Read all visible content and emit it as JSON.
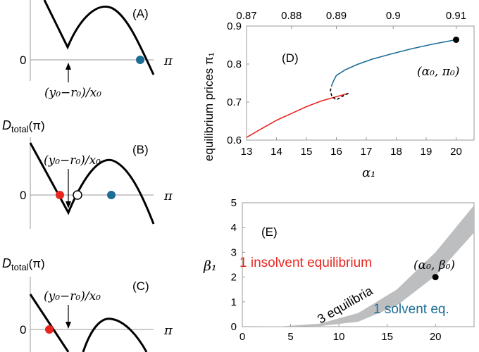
{
  "colors": {
    "red": "#e8261f",
    "blue": "#1d6d96",
    "black": "#000000",
    "gray": "#bdbec0",
    "axis": "#999999"
  },
  "panels": {
    "A": {
      "label": "(A)",
      "zero": "0",
      "pi": "π",
      "annotation": "(y₀−r₀)/x₀"
    },
    "B": {
      "ylabel": "D",
      "ylabel_sub": "total",
      "ylabel_arg": "(π)",
      "label": "(B)",
      "zero": "0",
      "pi": "π",
      "annotation": "(y₀−r₀)/x₀"
    },
    "C": {
      "ylabel": "D",
      "ylabel_sub": "total",
      "ylabel_arg": "(π)",
      "label": "(C)",
      "zero": "0",
      "pi": "π",
      "annotation": "(y₀−r₀)/x₀"
    }
  },
  "chart_data": [
    {
      "panel": "D",
      "type": "line",
      "label": "(D)",
      "xlabel": "α₁",
      "ylabel": "equilibrium prices π₁",
      "xlim": [
        13,
        20.6
      ],
      "ylim": [
        0.6,
        0.9
      ],
      "xticks": [
        "13",
        "14",
        "15",
        "16",
        "17",
        "18",
        "19",
        "20"
      ],
      "yticks": [
        "0.6",
        "0.7",
        "0.8",
        "0.9"
      ],
      "top_axis_ticks": [
        {
          "label": "0.87",
          "at": 13.0
        },
        {
          "label": "0.88",
          "at": 14.5
        },
        {
          "label": "0.89",
          "at": 16.0
        },
        {
          "label": "0.9",
          "at": 17.9
        },
        {
          "label": "0.91",
          "at": 20.0
        }
      ],
      "series": [
        {
          "branch": "insolvent",
          "color": "red",
          "x": [
            13.0,
            13.5,
            14.0,
            14.5,
            15.0,
            15.5,
            16.0,
            16.4
          ],
          "y": [
            0.607,
            0.63,
            0.652,
            0.67,
            0.688,
            0.703,
            0.714,
            0.723
          ]
        },
        {
          "branch": "unstable",
          "color": "black",
          "style": "dashed",
          "x": [
            16.4,
            16.2,
            16.0,
            15.85,
            15.8,
            15.84
          ],
          "y": [
            0.723,
            0.715,
            0.706,
            0.715,
            0.73,
            0.743
          ]
        },
        {
          "branch": "solvent",
          "color": "blue",
          "x": [
            15.84,
            15.9,
            16.0,
            16.3,
            16.7,
            17.2,
            17.8,
            18.5,
            19.2,
            20.0
          ],
          "y": [
            0.743,
            0.755,
            0.77,
            0.785,
            0.799,
            0.813,
            0.826,
            0.84,
            0.852,
            0.864
          ]
        }
      ],
      "point": {
        "label": "(α₀, π₀)",
        "x": 20.0,
        "y": 0.864
      }
    },
    {
      "panel": "E",
      "type": "area",
      "label": "(E)",
      "ylabel": "β₁",
      "xlim": [
        0,
        24
      ],
      "ylim": [
        0,
        5
      ],
      "xticks": [
        "0",
        "5",
        "10",
        "15",
        "20"
      ],
      "yticks": [
        "0",
        "1",
        "2",
        "3",
        "4",
        "5"
      ],
      "region_upper": {
        "x": [
          0,
          4,
          8,
          12,
          16,
          20,
          24
        ],
        "y": [
          0,
          0.01,
          0.12,
          0.55,
          1.5,
          3.0,
          4.9
        ]
      },
      "region_lower": {
        "x": [
          0,
          4,
          8,
          12,
          16,
          20,
          24
        ],
        "y": [
          0,
          0.0,
          0.02,
          0.2,
          0.85,
          2.05,
          3.8
        ]
      },
      "region_label": "3 equilibria",
      "text_insolvent": "1 insolvent equilibrium",
      "text_solvent": "1 solvent eq.",
      "point": {
        "label": "(α₀, β₀)",
        "x": 20.0,
        "y": 2.0
      }
    }
  ]
}
